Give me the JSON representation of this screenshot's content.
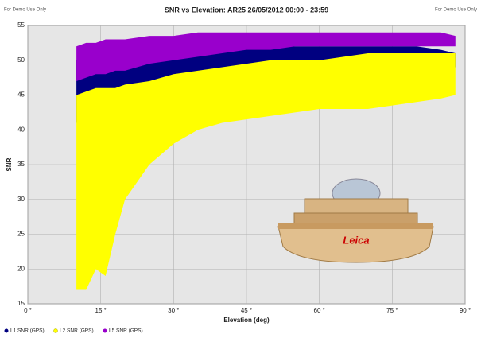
{
  "chart_data": {
    "type": "scatter-band",
    "title": "SNR vs Elevation: AR25 26/05/2012 00:00 - 23:59",
    "watermark_left": "For Demo Use Only",
    "watermark_right": "For Demo Use Only",
    "x_label": "Elevation (deg)",
    "y_label": "SNR",
    "logo_text": "Leica",
    "xlim": [
      0,
      90
    ],
    "ylim": [
      15,
      55
    ],
    "xticks": [
      {
        "value": 0,
        "label": "0 °"
      },
      {
        "value": 15,
        "label": "15 °"
      },
      {
        "value": 30,
        "label": "30 °"
      },
      {
        "value": 45,
        "label": "45 °"
      },
      {
        "value": 60,
        "label": "60 °"
      },
      {
        "value": 75,
        "label": "75 °"
      },
      {
        "value": 90,
        "label": "90 °"
      }
    ],
    "yticks": [
      15,
      20,
      25,
      30,
      35,
      40,
      45,
      50,
      55
    ],
    "grid": true,
    "x": [
      10,
      12,
      14,
      16,
      18,
      20,
      25,
      30,
      35,
      40,
      45,
      50,
      55,
      60,
      65,
      70,
      75,
      80,
      85,
      88
    ],
    "series": [
      {
        "name": "L1 SNR (GPS)",
        "color": "#000080",
        "low": [
          41,
          41.5,
          42,
          42.5,
          43,
          43,
          44,
          45,
          46,
          47,
          47.5,
          48,
          48.5,
          49,
          49,
          49,
          49,
          49,
          49,
          49
        ],
        "high": [
          50,
          50,
          50.5,
          50.5,
          51,
          51,
          51.5,
          52,
          52,
          52,
          52,
          52,
          52,
          52,
          52,
          52,
          52,
          52,
          51.5,
          51
        ]
      },
      {
        "name": "L2 SNR (GPS)",
        "color": "#ffff00",
        "low": [
          17,
          17,
          20,
          19,
          25,
          30,
          35,
          38,
          40,
          41,
          41.5,
          42,
          42.5,
          43,
          43,
          43,
          43.5,
          44,
          44.5,
          45
        ],
        "high": [
          45,
          45.5,
          46,
          46,
          46,
          46.5,
          47,
          48,
          48.5,
          49,
          49.5,
          50,
          50,
          50,
          50.5,
          51,
          51,
          51,
          51,
          51
        ]
      },
      {
        "name": "L5 SNR (GPS)",
        "color": "#9900cc",
        "low": [
          47,
          47.5,
          48,
          48,
          48.5,
          48.5,
          49.5,
          50,
          50.5,
          51,
          51.5,
          51.5,
          52,
          52,
          52,
          52,
          52,
          52,
          52,
          52
        ],
        "high": [
          52,
          52.5,
          52.5,
          53,
          53,
          53,
          53.5,
          53.5,
          54,
          54,
          54,
          54,
          54,
          54,
          54,
          54,
          54,
          54,
          54,
          53.5
        ]
      }
    ]
  }
}
